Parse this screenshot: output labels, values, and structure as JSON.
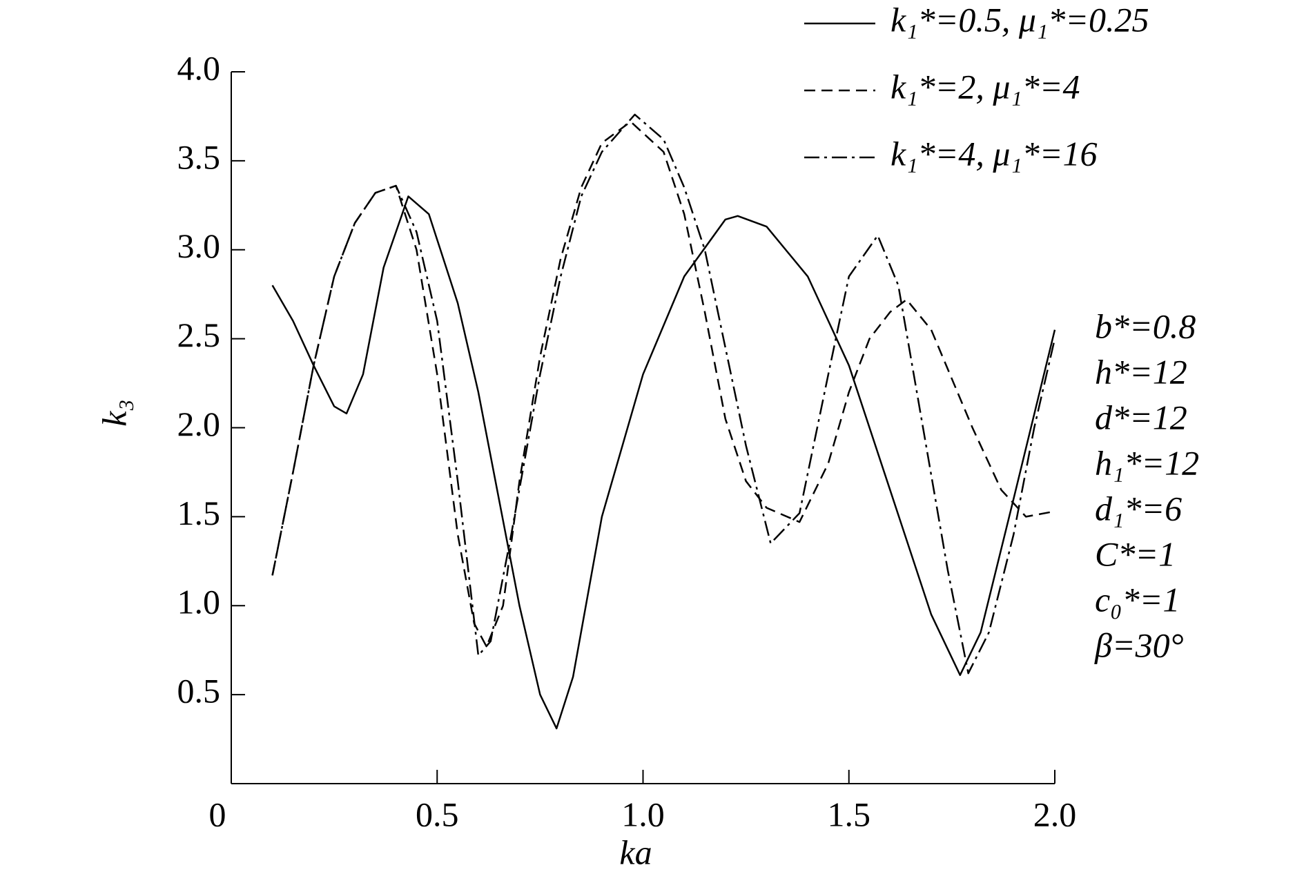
{
  "chart_data": {
    "type": "line",
    "x_label": "ka",
    "y_label": "k₃",
    "xlim": [
      0,
      2
    ],
    "ylim": [
      0,
      4
    ],
    "xticks": [
      0,
      0.5,
      {
        "value": 1,
        "label": "1.0"
      },
      1.5,
      {
        "value": 2,
        "label": "2.0"
      }
    ],
    "yticks": [
      0.5,
      {
        "value": 1,
        "label": "1.0"
      },
      1.5,
      {
        "value": 2,
        "label": "2.0"
      },
      2.5,
      {
        "value": 3,
        "label": "3.0"
      },
      3.5,
      {
        "value": 4,
        "label": "4.0"
      }
    ],
    "annotations": [
      "b*=0.8",
      "h*=12",
      "d*=12",
      "h₁*=12",
      "d₁*=6",
      "C*=1",
      "c₀*=1",
      "β=30°"
    ],
    "series": [
      {
        "name": "k₁*=0.5, μ₁*=0.25",
        "color": "#000000",
        "style": "solid",
        "x": [
          0.1,
          0.15,
          0.2,
          0.25,
          0.28,
          0.32,
          0.37,
          0.43,
          0.48,
          0.55,
          0.6,
          0.65,
          0.7,
          0.75,
          0.79,
          0.83,
          0.9,
          1.0,
          1.1,
          1.2,
          1.23,
          1.3,
          1.4,
          1.5,
          1.6,
          1.7,
          1.77,
          1.82,
          1.9,
          2.0
        ],
        "values": [
          2.8,
          2.6,
          2.35,
          2.12,
          2.08,
          2.3,
          2.9,
          3.3,
          3.2,
          2.7,
          2.2,
          1.6,
          1.0,
          0.5,
          0.31,
          0.6,
          1.5,
          2.3,
          2.85,
          3.17,
          3.19,
          3.13,
          2.85,
          2.35,
          1.65,
          0.95,
          0.61,
          0.85,
          1.6,
          2.55
        ]
      },
      {
        "name": "k₁*=2, μ₁*=4",
        "color": "#000000",
        "style": "dashed",
        "x": [
          0.1,
          0.15,
          0.2,
          0.25,
          0.3,
          0.35,
          0.4,
          0.45,
          0.5,
          0.55,
          0.59,
          0.62,
          0.66,
          0.7,
          0.75,
          0.8,
          0.85,
          0.9,
          0.97,
          1.05,
          1.1,
          1.15,
          1.2,
          1.25,
          1.3,
          1.38,
          1.45,
          1.5,
          1.55,
          1.6,
          1.64,
          1.7,
          1.8,
          1.87,
          1.93,
          2.0
        ],
        "values": [
          1.17,
          1.75,
          2.35,
          2.85,
          3.15,
          3.32,
          3.36,
          3.0,
          2.3,
          1.4,
          0.9,
          0.77,
          1.0,
          1.7,
          2.4,
          2.95,
          3.35,
          3.6,
          3.72,
          3.55,
          3.2,
          2.65,
          2.05,
          1.7,
          1.55,
          1.47,
          1.8,
          2.2,
          2.5,
          2.65,
          2.72,
          2.55,
          2.0,
          1.65,
          1.5,
          1.53
        ]
      },
      {
        "name": "k₁*=4, μ₁*=16",
        "color": "#000000",
        "style": "dashdot",
        "x": [
          0.1,
          0.15,
          0.2,
          0.25,
          0.3,
          0.35,
          0.4,
          0.45,
          0.5,
          0.55,
          0.6,
          0.63,
          0.68,
          0.75,
          0.8,
          0.85,
          0.9,
          0.98,
          1.05,
          1.1,
          1.15,
          1.2,
          1.25,
          1.31,
          1.38,
          1.45,
          1.5,
          1.57,
          1.62,
          1.68,
          1.74,
          1.79,
          1.84,
          1.9,
          1.95,
          2.0
        ],
        "values": [
          1.17,
          1.75,
          2.35,
          2.85,
          3.15,
          3.32,
          3.36,
          3.1,
          2.6,
          1.7,
          0.72,
          0.8,
          1.4,
          2.3,
          2.85,
          3.3,
          3.55,
          3.76,
          3.62,
          3.35,
          3.0,
          2.45,
          1.9,
          1.35,
          1.52,
          2.3,
          2.85,
          3.08,
          2.8,
          2.0,
          1.2,
          0.62,
          0.85,
          1.4,
          2.0,
          2.5
        ]
      }
    ]
  }
}
